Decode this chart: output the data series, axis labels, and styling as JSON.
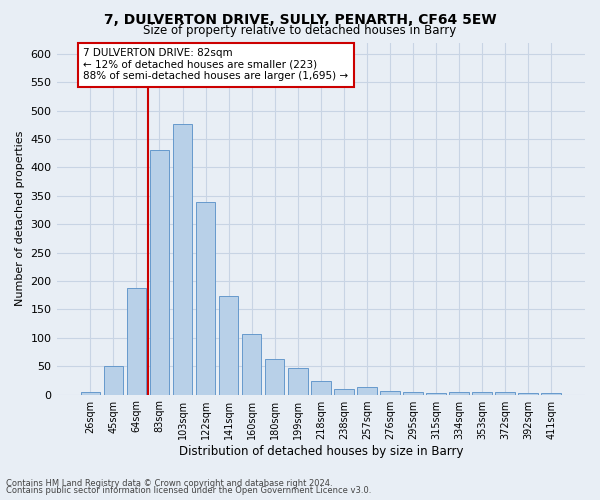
{
  "title": "7, DULVERTON DRIVE, SULLY, PENARTH, CF64 5EW",
  "subtitle": "Size of property relative to detached houses in Barry",
  "xlabel": "Distribution of detached houses by size in Barry",
  "ylabel": "Number of detached properties",
  "categories": [
    "26sqm",
    "45sqm",
    "64sqm",
    "83sqm",
    "103sqm",
    "122sqm",
    "141sqm",
    "160sqm",
    "180sqm",
    "199sqm",
    "218sqm",
    "238sqm",
    "257sqm",
    "276sqm",
    "295sqm",
    "315sqm",
    "334sqm",
    "353sqm",
    "372sqm",
    "392sqm",
    "411sqm"
  ],
  "values": [
    5,
    51,
    187,
    430,
    477,
    340,
    174,
    107,
    62,
    47,
    24,
    10,
    13,
    7,
    4,
    2,
    4,
    5,
    4,
    3,
    3
  ],
  "bar_color": "#b8d0e8",
  "bar_edge_color": "#6699cc",
  "grid_color": "#c8d4e4",
  "background_color": "#e8eef5",
  "vline_color": "#cc0000",
  "vline_index": 3,
  "annotation_text": "7 DULVERTON DRIVE: 82sqm\n← 12% of detached houses are smaller (223)\n88% of semi-detached houses are larger (1,695) →",
  "annotation_box_facecolor": "#ffffff",
  "annotation_box_edgecolor": "#cc0000",
  "ylim": [
    0,
    620
  ],
  "yticks": [
    0,
    50,
    100,
    150,
    200,
    250,
    300,
    350,
    400,
    450,
    500,
    550,
    600
  ],
  "footnote1": "Contains HM Land Registry data © Crown copyright and database right 2024.",
  "footnote2": "Contains public sector information licensed under the Open Government Licence v3.0."
}
